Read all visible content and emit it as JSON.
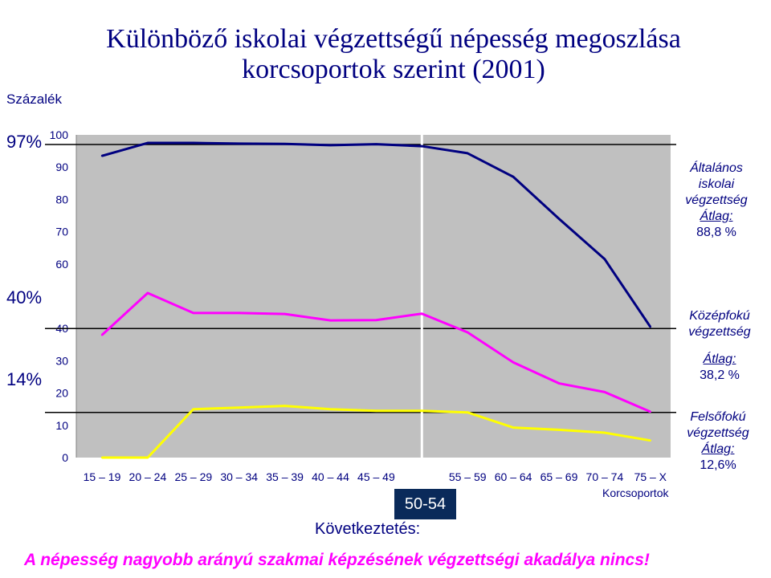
{
  "title": "Különböző iskolai végzettségű népesség megoszlása korcsoportok szerint (2001)",
  "y_unit_label": "Százalék",
  "side_percent_labels": [
    "97%",
    "40%",
    "14%"
  ],
  "legend": [
    {
      "name": "Általános iskolai végzettség",
      "avg_label": "Átlag:",
      "avg_value": "88,8 %",
      "color": "#000080"
    },
    {
      "name": "Középfokú végzettség",
      "avg_label": "Átlag:",
      "avg_value": "38,2 %",
      "color": "#ff00ff"
    },
    {
      "name": "Felsőfokú végzettség",
      "avg_label": "Átlag:",
      "avg_value": "12,6%",
      "color": "#ffff00"
    }
  ],
  "highlight_group": "50-54",
  "conclusion_label": "Következtetés:",
  "conclusion_text": "A népesség nagyobb arányú szakmai képzésének végzettségi akadálya nincs!",
  "colors": {
    "plot_bg": "#c0c0c0",
    "text": "#000080"
  },
  "chart_data": {
    "type": "line",
    "categories": [
      "15 – 19",
      "20 – 24",
      "25 – 29",
      "30 – 34",
      "35 – 39",
      "40 – 44",
      "45 – 49",
      "50 – 54",
      "55 – 59",
      "60 – 64",
      "65 – 69",
      "70 – 74",
      "75 – X"
    ],
    "xlabel": "Korcsoportok",
    "ylabel": "",
    "ylim": [
      0,
      100
    ],
    "yticks": [
      0,
      10,
      20,
      30,
      40,
      60,
      70,
      80,
      90,
      100
    ],
    "reference_lines": [
      97,
      40,
      14
    ],
    "grid": false,
    "series": [
      {
        "name": "Általános iskolai végzettség",
        "color": "#000080",
        "values": [
          93.5,
          97.5,
          97.5,
          97.3,
          97.2,
          96.8,
          97.1,
          96.5,
          94.3,
          87,
          74,
          61.5,
          40.5
        ]
      },
      {
        "name": "Középfokú végzettség",
        "color": "#ff00ff",
        "values": [
          38,
          51,
          44.8,
          44.8,
          44.5,
          42.5,
          42.6,
          44.6,
          38.8,
          29.5,
          23,
          20.3,
          14.2
        ]
      },
      {
        "name": "Felsőfokú végzettség",
        "color": "#ffff00",
        "values": [
          0,
          0,
          15,
          15.5,
          16,
          15,
          14.5,
          14.5,
          14,
          9.3,
          8.6,
          7.7,
          5.3
        ]
      }
    ]
  }
}
